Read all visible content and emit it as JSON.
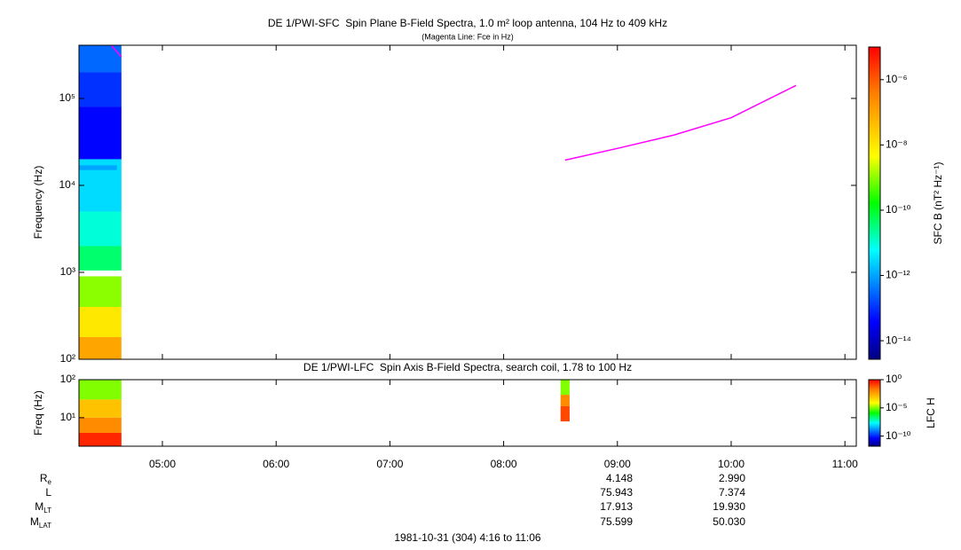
{
  "chart_data": [
    {
      "type": "spectrogram",
      "title": "DE 1/PWI-SFC  Spin Plane B-Field Spectra, 1.0 m² loop antenna, 104 Hz to 409 kHz",
      "subtitle": "(Magenta Line: Fce in Hz)",
      "ylabel": "Frequency (Hz)",
      "ylog": true,
      "xlim": [
        4.2667,
        11.1
      ],
      "ylim": [
        100,
        409000
      ],
      "yticks": [
        {
          "value": 100,
          "label": "10²"
        },
        {
          "value": 1000,
          "label": "10³"
        },
        {
          "value": 10000,
          "label": "10⁴"
        },
        {
          "value": 100000,
          "label": "10⁵"
        }
      ],
      "zlabel": "SFC B (nT² Hz⁻¹)",
      "zlim": [
        2.7e-15,
        1e-05
      ],
      "zticks": [
        {
          "value": 1e-06,
          "label": "10⁻⁶"
        },
        {
          "value": 1e-08,
          "label": "10⁻⁸"
        },
        {
          "value": 1e-10,
          "label": "10⁻¹⁰"
        },
        {
          "value": 1e-12,
          "label": "10⁻¹²"
        },
        {
          "value": 1e-14,
          "label": "10⁻¹⁴"
        }
      ],
      "cells": [
        {
          "t0": 4.27,
          "t1": 4.64,
          "f0": 200000,
          "f1": 409000,
          "z": 3e-13
        },
        {
          "t0": 4.27,
          "t1": 4.64,
          "f0": 80000,
          "f1": 200000,
          "z": 1e-13
        },
        {
          "t0": 4.27,
          "t1": 4.64,
          "f0": 20000,
          "f1": 80000,
          "z": 4e-14
        },
        {
          "t0": 4.27,
          "t1": 4.64,
          "f0": 5000,
          "f1": 20000,
          "z": 3e-12
        },
        {
          "t0": 4.27,
          "t1": 4.64,
          "f0": 2000,
          "f1": 5000,
          "z": 1e-11
        },
        {
          "t0": 4.27,
          "t1": 4.64,
          "f0": 1050,
          "f1": 2000,
          "z": 4e-11
        },
        {
          "t0": 4.27,
          "t1": 4.6,
          "f0": 15000,
          "f1": 17000,
          "z": 1e-12
        },
        {
          "t0": 4.27,
          "t1": 4.64,
          "f0": 400,
          "f1": 900,
          "z": 1e-09
        },
        {
          "t0": 4.27,
          "t1": 4.64,
          "f0": 180,
          "f1": 400,
          "z": 1e-08
        },
        {
          "t0": 4.27,
          "t1": 4.64,
          "f0": 100,
          "f1": 180,
          "z": 1e-07
        }
      ],
      "lines": [
        {
          "color": "#ff00ff",
          "x": [
            4.55,
            4.64,
            null,
            8.54,
            9.02,
            9.5,
            10.0,
            10.57
          ],
          "values": [
            409000,
            300000,
            null,
            19500,
            27000,
            38000,
            60000,
            141000
          ]
        }
      ]
    },
    {
      "type": "spectrogram",
      "title": "DE 1/PWI-LFC  Spin Axis B-Field Spectra, search coil, 1.78 to 100 Hz",
      "ylabel": "Freq (Hz)",
      "ylog": true,
      "xlim": [
        4.2667,
        11.1
      ],
      "ylim": [
        1.78,
        100
      ],
      "yticks": [
        {
          "value": 10,
          "label": "10¹"
        },
        {
          "value": 100,
          "label": "10²"
        }
      ],
      "xticks": [
        {
          "value": 5,
          "label": "05:00"
        },
        {
          "value": 6,
          "label": "06:00"
        },
        {
          "value": 7,
          "label": "07:00"
        },
        {
          "value": 8,
          "label": "08:00"
        },
        {
          "value": 9,
          "label": "09:00"
        },
        {
          "value": 10,
          "label": "10:00"
        },
        {
          "value": 11,
          "label": "11:00"
        }
      ],
      "zlabel": "LFC H",
      "zlim": [
        1.6e-12,
        1
      ],
      "zticks": [
        {
          "value": 1,
          "label": "10⁰"
        },
        {
          "value": 1e-05,
          "label": "10⁻⁵"
        },
        {
          "value": 1e-10,
          "label": "10⁻¹⁰"
        }
      ],
      "cells": [
        {
          "t0": 4.27,
          "t1": 4.64,
          "f0": 30,
          "f1": 100,
          "z": 1e-05
        },
        {
          "t0": 4.27,
          "t1": 4.64,
          "f0": 10,
          "f1": 30,
          "z": 0.001
        },
        {
          "t0": 4.27,
          "t1": 4.64,
          "f0": 4,
          "f1": 10,
          "z": 0.01
        },
        {
          "t0": 4.27,
          "t1": 4.64,
          "f0": 1.78,
          "f1": 4,
          "z": 0.3
        },
        {
          "t0": 8.5,
          "t1": 8.58,
          "f0": 40,
          "f1": 100,
          "z": 1e-05
        },
        {
          "t0": 8.5,
          "t1": 8.58,
          "f0": 20,
          "f1": 40,
          "z": 0.01
        },
        {
          "t0": 8.5,
          "t1": 8.58,
          "f0": 8,
          "f1": 20,
          "z": 0.1
        }
      ]
    }
  ],
  "ephemeris": {
    "rows": [
      {
        "label": "R",
        "sub": "e",
        "values": [
          "4.148",
          "2.990"
        ]
      },
      {
        "label": "L",
        "values": [
          "75.943",
          "7.374"
        ]
      },
      {
        "label": "M",
        "sub": "LT",
        "values": [
          "17.913",
          "19.930"
        ]
      },
      {
        "label": "M",
        "sub": "LAT",
        "values": [
          "75.599",
          "50.030"
        ]
      }
    ]
  },
  "footer": "1981-10-31 (304) 4:16 to 11:06"
}
